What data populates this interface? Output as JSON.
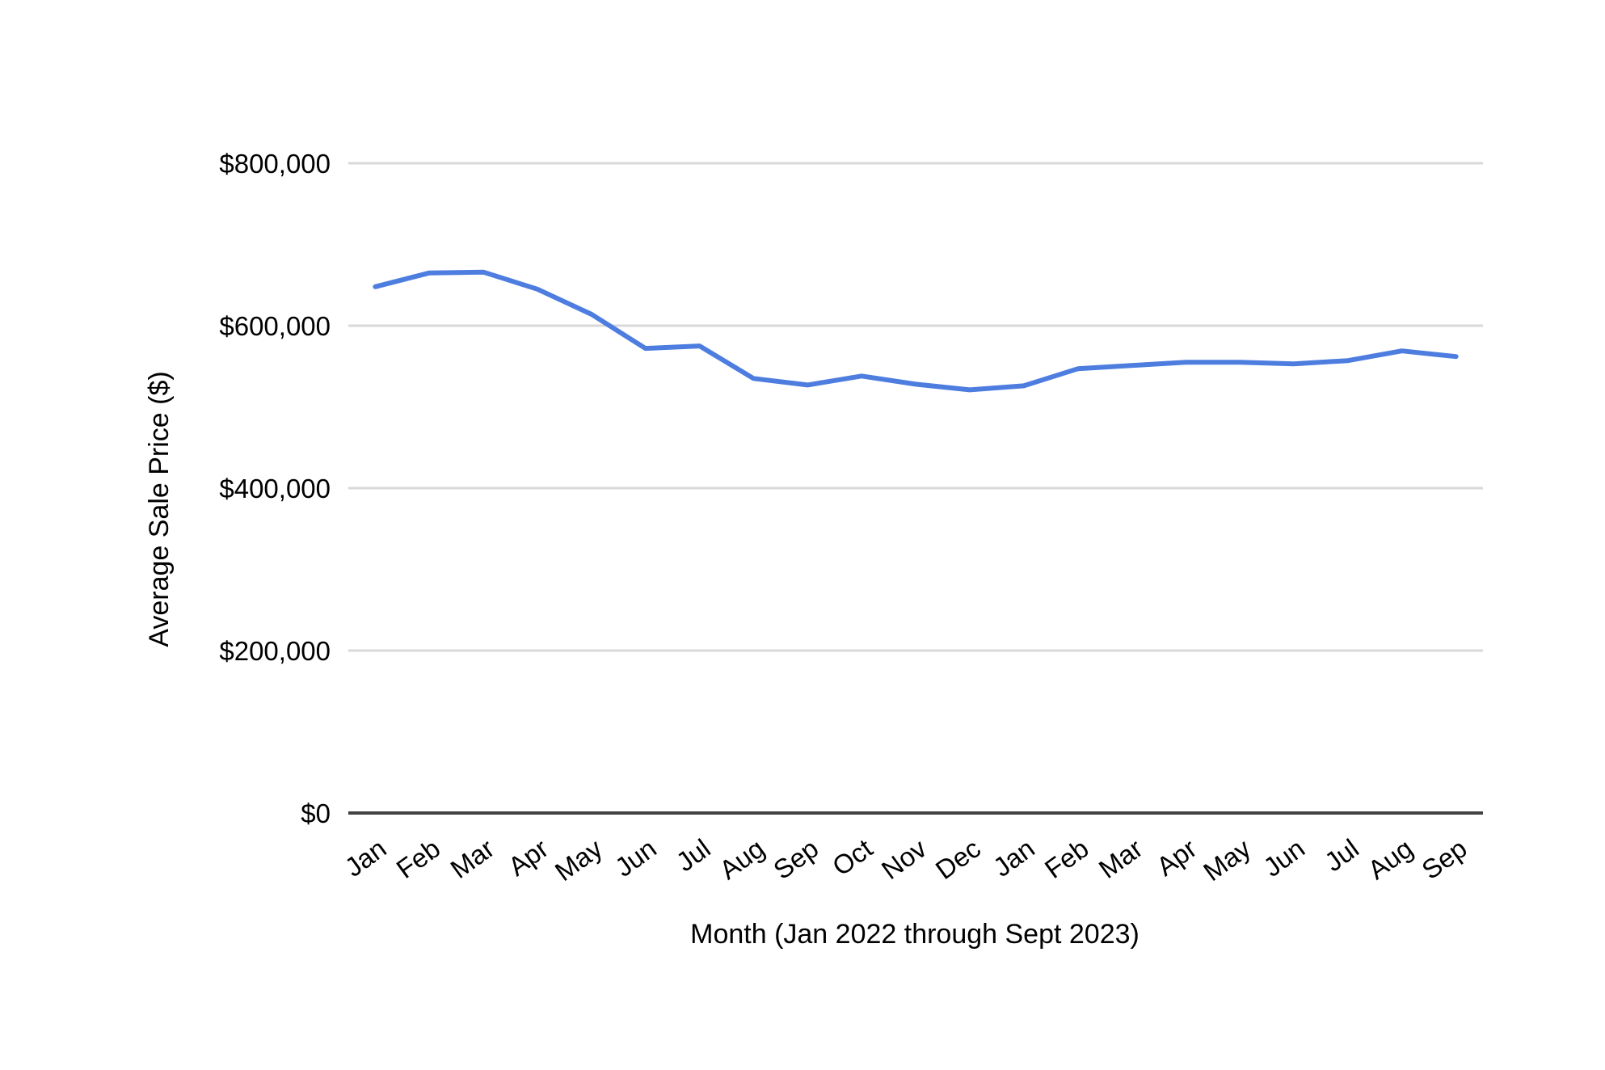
{
  "chart_data": {
    "type": "line",
    "title": "",
    "xlabel": "Month (Jan 2022 through Sept 2023)",
    "ylabel": "Average Sale Price ($)",
    "categories": [
      "Jan",
      "Feb",
      "Mar",
      "Apr",
      "May",
      "Jun",
      "Jul",
      "Aug",
      "Sep",
      "Oct",
      "Nov",
      "Dec",
      "Jan",
      "Feb",
      "Mar",
      "Apr",
      "May",
      "Jun",
      "Jul",
      "Aug",
      "Sep"
    ],
    "series": [
      {
        "name": "Average Sale Price",
        "values": [
          648000,
          665000,
          666000,
          645000,
          614000,
          572000,
          575000,
          535000,
          527000,
          538000,
          528000,
          521000,
          526000,
          547000,
          551000,
          555000,
          555000,
          553000,
          557000,
          569000,
          562000
        ]
      }
    ],
    "ylim": [
      0,
      800000
    ],
    "yticks": [
      {
        "value": 0,
        "label": "$0"
      },
      {
        "value": 200000,
        "label": "$200,000"
      },
      {
        "value": 400000,
        "label": "$400,000"
      },
      {
        "value": 600000,
        "label": "$600,000"
      },
      {
        "value": 800000,
        "label": "$800,000"
      }
    ],
    "grid": "horizontal",
    "legend": "none",
    "colors": {
      "line": "#4e7de0",
      "gridline": "#d9d9d9",
      "axis_line": "#424242",
      "text": "#000000",
      "background": "#ffffff"
    }
  }
}
